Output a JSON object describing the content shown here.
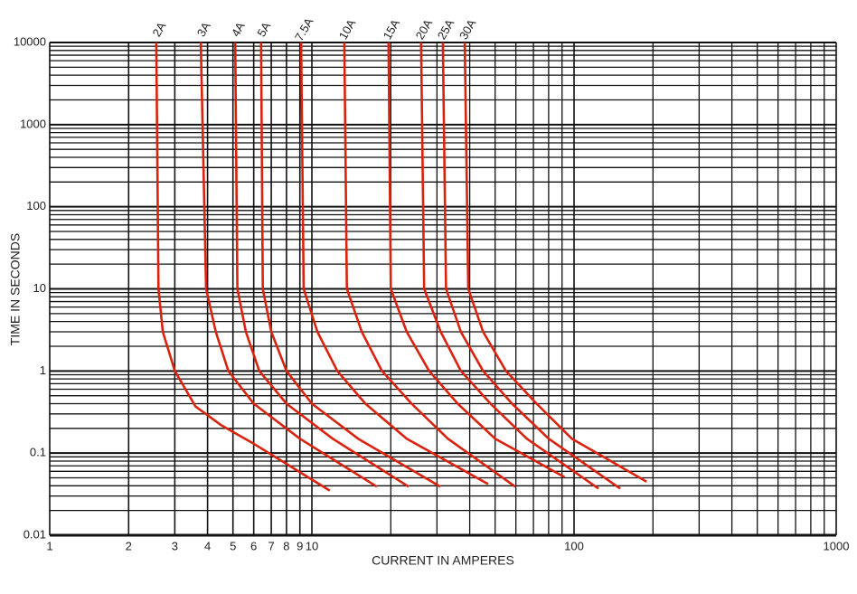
{
  "chart_data": {
    "type": "line",
    "xlabel": "CURRENT IN AMPERES",
    "ylabel": "TIME IN SECONDS",
    "xscale": "log",
    "yscale": "log",
    "grid": true,
    "xlim": [
      1,
      1000
    ],
    "ylim": [
      0.01,
      10000
    ],
    "xticks": [
      1,
      2,
      3,
      4,
      5,
      6,
      7,
      8,
      9,
      10,
      100,
      1000
    ],
    "x_minor_ticks": [
      20,
      30,
      40,
      50,
      60,
      70,
      80,
      90,
      200,
      300,
      400,
      500,
      600,
      700,
      800,
      900
    ],
    "yticks": [
      0.01,
      0.1,
      1,
      10,
      100,
      1000,
      10000
    ],
    "y_minor_ticks": [
      0.02,
      0.03,
      0.04,
      0.05,
      0.06,
      0.07,
      0.08,
      0.09,
      0.2,
      0.3,
      0.4,
      0.5,
      0.6,
      0.7,
      0.8,
      0.9,
      2,
      3,
      4,
      5,
      6,
      7,
      8,
      9,
      20,
      30,
      40,
      50,
      60,
      70,
      80,
      90,
      200,
      300,
      400,
      500,
      600,
      700,
      800,
      900,
      2000,
      3000,
      4000,
      5000,
      6000,
      7000,
      8000,
      9000
    ],
    "series": [
      {
        "name": "2A",
        "color": "#d9230f",
        "x": [
          2.55,
          2.6,
          2.7,
          3.0,
          3.6,
          4.5,
          6,
          11.7
        ],
        "values": [
          10000,
          10,
          3,
          1,
          0.37,
          0.22,
          0.13,
          0.035
        ]
      },
      {
        "name": "3A",
        "color": "#d9230f",
        "x": [
          3.77,
          3.95,
          4.3,
          4.8,
          6,
          9,
          17.7
        ],
        "values": [
          10000,
          10,
          3,
          1,
          0.4,
          0.15,
          0.039
        ]
      },
      {
        "name": "4A",
        "color": "#d9230f",
        "x": [
          5.1,
          5.2,
          5.6,
          6.3,
          8,
          12,
          23.4
        ],
        "values": [
          10000,
          10,
          3,
          1,
          0.4,
          0.15,
          0.039
        ]
      },
      {
        "name": "5A",
        "color": "#d9230f",
        "x": [
          6.4,
          6.5,
          7,
          8,
          10,
          15,
          30.9
        ],
        "values": [
          10000,
          10,
          3,
          1,
          0.4,
          0.15,
          0.039
        ]
      },
      {
        "name": "7.5A",
        "color": "#d9230f",
        "x": [
          9.1,
          9.3,
          10.5,
          12.5,
          16,
          23,
          47
        ],
        "values": [
          10000,
          10,
          3,
          1,
          0.4,
          0.15,
          0.042
        ]
      },
      {
        "name": "10A",
        "color": "#d9230f",
        "x": [
          13.3,
          13.6,
          15.5,
          18.5,
          24,
          33,
          59.7
        ],
        "values": [
          10000,
          10,
          3,
          1,
          0.4,
          0.15,
          0.039
        ]
      },
      {
        "name": "15A",
        "color": "#d9230f",
        "x": [
          19.6,
          20,
          23,
          28,
          36,
          50,
          92
        ],
        "values": [
          10000,
          10,
          3,
          1,
          0.4,
          0.15,
          0.051
        ]
      },
      {
        "name": "20A",
        "color": "#d9230f",
        "x": [
          26.1,
          26.8,
          31,
          37,
          48,
          66,
          124
        ],
        "values": [
          10000,
          10,
          3,
          1,
          0.4,
          0.15,
          0.037
        ]
      },
      {
        "name": "25A",
        "color": "#d9230f",
        "x": [
          31.6,
          32.5,
          37,
          45,
          58,
          80,
          150
        ],
        "values": [
          10000,
          10,
          3,
          1,
          0.4,
          0.15,
          0.037
        ]
      },
      {
        "name": "30A",
        "color": "#d9230f",
        "x": [
          38.3,
          39.5,
          45,
          55,
          72,
          98,
          189
        ],
        "values": [
          10000,
          10,
          3,
          1,
          0.4,
          0.15,
          0.045
        ]
      }
    ]
  }
}
